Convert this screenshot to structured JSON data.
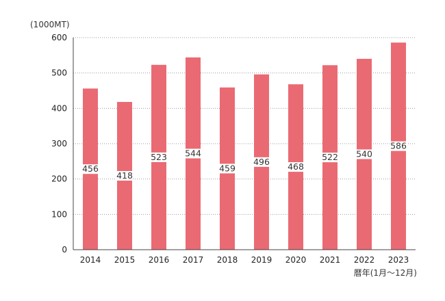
{
  "chart_data": {
    "type": "bar",
    "title": "",
    "ylabel": "(1000MT)",
    "xlabel": "暦年(1月～12月)",
    "categories": [
      "2014",
      "2015",
      "2016",
      "2017",
      "2018",
      "2019",
      "2020",
      "2021",
      "2022",
      "2023"
    ],
    "values": [
      456,
      418,
      523,
      544,
      459,
      496,
      468,
      522,
      540,
      586
    ],
    "ylim": [
      0,
      600
    ],
    "yticks": [
      0,
      100,
      200,
      300,
      400,
      500,
      600
    ],
    "grid": true,
    "legend": "none",
    "bar_color": "#ea6a73"
  }
}
